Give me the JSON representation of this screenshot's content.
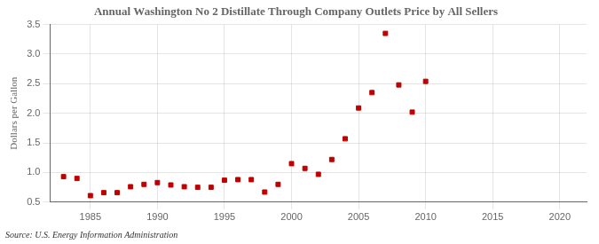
{
  "chart_data": {
    "type": "scatter",
    "title": "Annual Washington No 2 Distillate Through Company Outlets Price by All Sellers",
    "ylabel": "Dollars per Gallon",
    "annotations": [
      "Source: U.S. Energy Information Administration"
    ],
    "x": [
      1983,
      1984,
      1985,
      1986,
      1987,
      1988,
      1989,
      1990,
      1991,
      1992,
      1993,
      1994,
      1995,
      1996,
      1997,
      1998,
      1999,
      2000,
      2001,
      2002,
      2003,
      2004,
      2005,
      2006,
      2007,
      2008,
      2009,
      2010
    ],
    "values": [
      0.93,
      0.9,
      0.61,
      0.66,
      0.66,
      0.76,
      0.8,
      0.83,
      0.79,
      0.76,
      0.75,
      0.75,
      0.87,
      0.88,
      0.88,
      0.67,
      0.8,
      1.15,
      1.07,
      0.97,
      1.22,
      1.57,
      2.09,
      2.35,
      3.35,
      2.48,
      2.02,
      2.54
    ],
    "color": "#c00000",
    "marker": "square",
    "xlim": [
      1982,
      2022
    ],
    "xticks": [
      1985,
      1990,
      1995,
      2000,
      2005,
      2010,
      2015,
      2020
    ],
    "ylim": [
      0.5,
      3.5
    ],
    "yticks": [
      0.5,
      {
        "value": 1.0,
        "label": "1.0"
      },
      1.5,
      {
        "value": 2.0,
        "label": "2.0"
      },
      2.5,
      {
        "value": 3.0,
        "label": "3.0"
      },
      3.5
    ],
    "grid": true
  }
}
